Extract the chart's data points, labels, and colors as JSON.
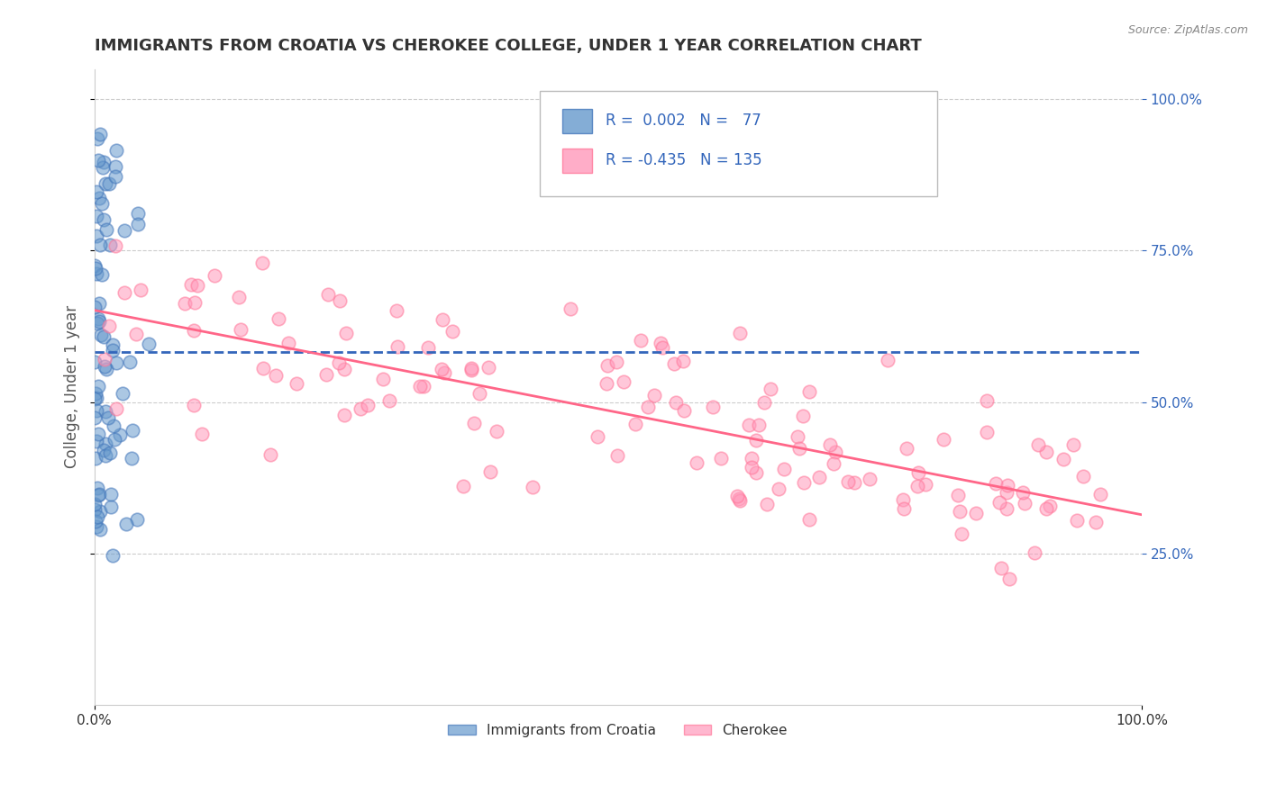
{
  "title": "IMMIGRANTS FROM CROATIA VS CHEROKEE COLLEGE, UNDER 1 YEAR CORRELATION CHART",
  "source_text": "Source: ZipAtlas.com",
  "ylabel": "College, Under 1 year",
  "xlim": [
    0.0,
    1.0
  ],
  "ylim": [
    0.0,
    1.05
  ],
  "blue_R": 0.002,
  "blue_N": 77,
  "pink_R": -0.435,
  "pink_N": 135,
  "blue_color": "#6699CC",
  "pink_color": "#FF99BB",
  "blue_edge_color": "#4477BB",
  "pink_edge_color": "#FF7799",
  "blue_line_color": "#3366BB",
  "pink_line_color": "#FF6688",
  "legend_label_blue": "Immigrants from Croatia",
  "legend_label_pink": "Cherokee",
  "grid_color": "#CCCCCC",
  "background_color": "#FFFFFF",
  "title_color": "#333333",
  "axis_label_color": "#555555",
  "tick_label_color": "#333333",
  "right_tick_color": "#3366BB",
  "source_color": "#888888"
}
